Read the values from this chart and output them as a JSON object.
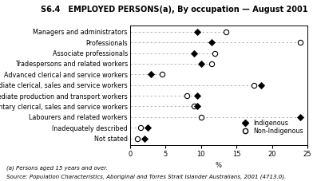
{
  "title": "S6.4   EMPLOYED PERSONS(a), By occupation — August 2001",
  "categories": [
    "Managers and administrators",
    "Professionals",
    "Associate professionals",
    "Tradespersons and related workers",
    "Advanced clerical and service workers",
    "Intermediate clerical, sales and service workers",
    "Intermediate production and transport workers",
    "Elementary clerical, sales and service workers",
    "Labourers and related workers",
    "Inadequately described",
    "Not stated"
  ],
  "indigenous": [
    9.5,
    11.5,
    9.0,
    10.0,
    3.0,
    18.5,
    9.5,
    9.5,
    24.0,
    2.5,
    2.0
  ],
  "non_indigenous": [
    13.5,
    24.0,
    12.0,
    11.5,
    4.5,
    17.5,
    8.0,
    9.0,
    10.0,
    1.5,
    1.0
  ],
  "xlabel": "%",
  "xlim": [
    0,
    25
  ],
  "xticks": [
    0,
    5,
    10,
    15,
    20,
    25
  ],
  "legend_indigenous": "Indigenous",
  "legend_non_indigenous": "Non-Indigenous",
  "footnote1": "(a) Persons aged 15 years and over.",
  "footnote2": "Source: Population Characteristics, Aboriginal and Torres Strait Islander Australians, 2001 (4713.0).",
  "bg_color": "#ffffff",
  "dashed_color": "#aaaaaa",
  "title_fontsize": 7,
  "label_fontsize": 5.8,
  "tick_fontsize": 6.0,
  "footnote_fontsize": 5.0
}
